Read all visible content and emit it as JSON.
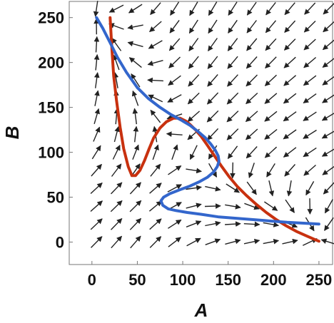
{
  "chart_data": {
    "type": "vector-field with nullclines",
    "xlabel": "A",
    "ylabel": "B",
    "xlim": [
      -25,
      265
    ],
    "ylim": [
      -25,
      268
    ],
    "x_ticks": [
      0,
      50,
      100,
      150,
      200,
      250
    ],
    "y_ticks": [
      0,
      50,
      100,
      150,
      200,
      250
    ],
    "x_tick_labels": [
      "0",
      "50",
      "100",
      "150",
      "200",
      "250"
    ],
    "y_tick_labels": [
      "0",
      "50",
      "100",
      "150",
      "200",
      "250"
    ],
    "grid": false,
    "series": [
      {
        "color": "#c8310f",
        "x": [
          20,
          22,
          24,
          27,
          31,
          35,
          40,
          44,
          48,
          53,
          58,
          63,
          68,
          75,
          82,
          90,
          97,
          103,
          108,
          114,
          120,
          127,
          135,
          143,
          151,
          160,
          170,
          181,
          192,
          203,
          214,
          225,
          236,
          245,
          250
        ],
        "y": [
          250,
          215,
          185,
          158,
          128,
          104,
          84,
          74,
          74,
          80,
          91,
          104,
          116,
          127,
          134,
          138,
          138,
          135,
          131,
          125,
          118,
          108,
          96,
          84,
          73,
          62,
          52,
          42,
          33,
          25,
          18,
          12,
          7,
          3,
          1
        ]
      },
      {
        "color": "#3366cc",
        "x": [
          5,
          12,
          20,
          28,
          38,
          50,
          62,
          75,
          87,
          98,
          108,
          117,
          125,
          131,
          136,
          139,
          140,
          138,
          134,
          127,
          118,
          107,
          96,
          86,
          79,
          76,
          78,
          84,
          93,
          105,
          120,
          140,
          165,
          190,
          215,
          235,
          250
        ],
        "y": [
          250,
          238,
          222,
          206,
          189,
          172,
          160,
          150,
          142,
          136,
          130,
          123,
          116,
          109,
          102,
          96,
          90,
          84,
          78,
          72,
          67,
          62,
          58,
          54,
          50,
          46,
          41,
          37,
          35,
          33,
          31,
          28,
          26,
          24,
          22,
          21,
          20
        ]
      }
    ],
    "vector_field": {
      "a_values": [
        5,
        27,
        48,
        70,
        91,
        112,
        133,
        155,
        176,
        197,
        218,
        240,
        261
      ],
      "b_values": [
        0,
        20,
        40,
        60,
        80,
        100,
        120,
        140,
        160,
        180,
        200,
        220,
        240,
        260
      ]
    }
  }
}
